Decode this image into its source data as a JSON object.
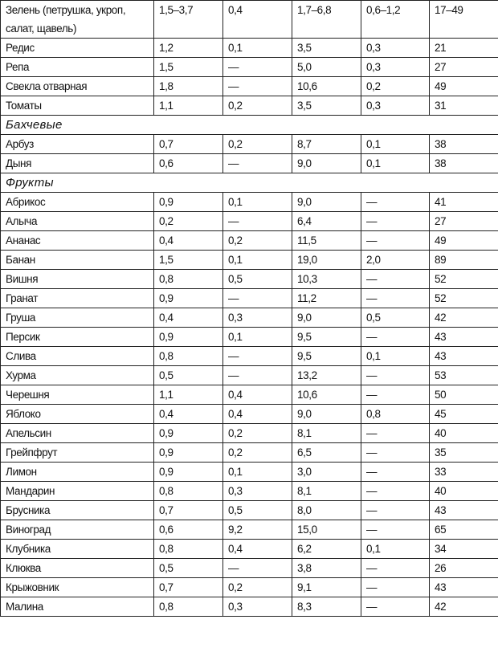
{
  "rows": [
    {
      "type": "row",
      "cells": [
        "Зелень (петрушка, укроп, салат, щавель)",
        "1,5–3,7",
        "0,4",
        "1,7–6,8",
        "0,6–1,2",
        "17–49"
      ]
    },
    {
      "type": "row",
      "cells": [
        "Редис",
        "1,2",
        "0,1",
        "3,5",
        "0,3",
        "21"
      ]
    },
    {
      "type": "row",
      "cells": [
        "Репа",
        "1,5",
        "—",
        "5,0",
        "0,3",
        "27"
      ]
    },
    {
      "type": "row",
      "cells": [
        "Свекла отварная",
        "1,8",
        "—",
        "10,6",
        "0,2",
        "49"
      ]
    },
    {
      "type": "row",
      "cells": [
        "Томаты",
        "1,1",
        "0,2",
        "3,5",
        "0,3",
        "31"
      ]
    },
    {
      "type": "section",
      "label": "Бахчевые"
    },
    {
      "type": "row",
      "cells": [
        "Арбуз",
        "0,7",
        "0,2",
        "8,7",
        "0,1",
        "38"
      ]
    },
    {
      "type": "row",
      "cells": [
        "Дыня",
        "0,6",
        "—",
        "9,0",
        "0,1",
        "38"
      ]
    },
    {
      "type": "section",
      "label": "Фрукты"
    },
    {
      "type": "row",
      "cells": [
        "Абрикос",
        "0,9",
        "0,1",
        "9,0",
        "—",
        "41"
      ]
    },
    {
      "type": "row",
      "cells": [
        "Алыча",
        "0,2",
        "—",
        "6,4",
        "—",
        "27"
      ]
    },
    {
      "type": "row",
      "cells": [
        "Ананас",
        "0,4",
        "0,2",
        "11,5",
        "—",
        "49"
      ]
    },
    {
      "type": "row",
      "cells": [
        "Банан",
        "1,5",
        "0,1",
        "19,0",
        "2,0",
        "89"
      ]
    },
    {
      "type": "row",
      "cells": [
        "Вишня",
        "0,8",
        "0,5",
        "10,3",
        "—",
        "52"
      ]
    },
    {
      "type": "row",
      "cells": [
        "Гранат",
        "0,9",
        "—",
        "11,2",
        "—",
        "52"
      ]
    },
    {
      "type": "row",
      "cells": [
        "Груша",
        "0,4",
        "0,3",
        "9,0",
        "0,5",
        "42"
      ]
    },
    {
      "type": "row",
      "cells": [
        "Персик",
        "0,9",
        "0,1",
        "9,5",
        "—",
        "43"
      ]
    },
    {
      "type": "row",
      "cells": [
        "Слива",
        "0,8",
        "—",
        "9,5",
        "0,1",
        "43"
      ]
    },
    {
      "type": "row",
      "cells": [
        "Хурма",
        "0,5",
        "—",
        "13,2",
        "—",
        "53"
      ]
    },
    {
      "type": "row",
      "cells": [
        "Черешня",
        "1,1",
        "0,4",
        "10,6",
        "—",
        "50"
      ]
    },
    {
      "type": "row",
      "cells": [
        "Яблоко",
        "0,4",
        "0,4",
        "9,0",
        "0,8",
        "45"
      ]
    },
    {
      "type": "row",
      "cells": [
        "Апельсин",
        "0,9",
        "0,2",
        "8,1",
        "—",
        "40"
      ]
    },
    {
      "type": "row",
      "cells": [
        "Грейпфрут",
        "0,9",
        "0,2",
        "6,5",
        "—",
        "35"
      ]
    },
    {
      "type": "row",
      "cells": [
        "Лимон",
        "0,9",
        "0,1",
        "3,0",
        "—",
        "33"
      ]
    },
    {
      "type": "row",
      "cells": [
        "Мандарин",
        "0,8",
        "0,3",
        "8,1",
        "—",
        "40"
      ]
    },
    {
      "type": "row",
      "cells": [
        "Брусника",
        "0,7",
        "0,5",
        "8,0",
        "—",
        "43"
      ]
    },
    {
      "type": "row",
      "cells": [
        "Виноград",
        "0,6",
        "9,2",
        "15,0",
        "—",
        "65"
      ]
    },
    {
      "type": "row",
      "cells": [
        "Клубника",
        "0,8",
        "0,4",
        "6,2",
        "0,1",
        "34"
      ]
    },
    {
      "type": "row",
      "cells": [
        "Клюква",
        "0,5",
        "—",
        "3,8",
        "—",
        "26"
      ]
    },
    {
      "type": "row",
      "cells": [
        "Крыжовник",
        "0,7",
        "0,2",
        "9,1",
        "—",
        "43"
      ]
    },
    {
      "type": "row",
      "cells": [
        "Малина",
        "0,8",
        "0,3",
        "8,3",
        "—",
        "42"
      ]
    }
  ]
}
